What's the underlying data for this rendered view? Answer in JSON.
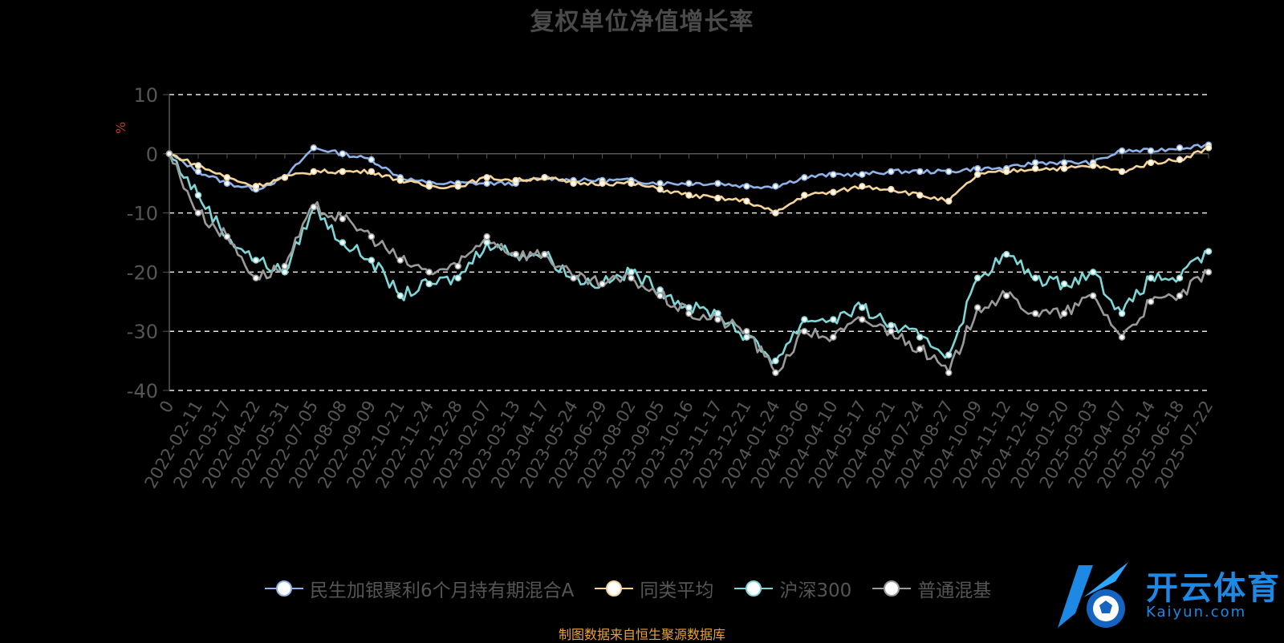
{
  "chart_data": {
    "type": "line",
    "title": "复权单位净值增长率",
    "ylabel": "%",
    "ylim": [
      -40,
      10
    ],
    "yticks": [
      10,
      0,
      -10,
      -20,
      -30,
      -40
    ],
    "grid": true,
    "legend_position": "bottom",
    "categories": [
      "0",
      "2022-02-11",
      "2022-03-17",
      "2022-04-22",
      "2022-05-31",
      "2022-07-05",
      "2022-08-08",
      "2022-09-09",
      "2022-10-21",
      "2022-11-24",
      "2022-12-28",
      "2023-02-07",
      "2023-03-13",
      "2023-04-17",
      "2023-05-24",
      "2023-06-29",
      "2023-08-02",
      "2023-09-05",
      "2023-10-16",
      "2023-11-17",
      "2023-12-21",
      "2024-01-24",
      "2024-03-06",
      "2024-04-10",
      "2024-05-17",
      "2024-06-21",
      "2024-07-24",
      "2024-08-27",
      "2024-10-09",
      "2024-11-12",
      "2024-12-16",
      "2025-01-20",
      "2025-03-03",
      "2025-04-07",
      "2025-05-14",
      "2025-06-18",
      "2025-07-22"
    ],
    "series": [
      {
        "name": "民生加银聚利6个月持有期混合A",
        "color": "#8fb3e8",
        "values": [
          0,
          -3,
          -5,
          -6,
          -4,
          1,
          0,
          -1,
          -4,
          -5,
          -5,
          -5,
          -5,
          -4,
          -4.5,
          -4.5,
          -4.5,
          -5,
          -5,
          -5,
          -5.5,
          -5.5,
          -4,
          -3.5,
          -3.5,
          -3,
          -3,
          -3,
          -2.5,
          -2.5,
          -1.5,
          -1.5,
          -1.5,
          0.5,
          0.5,
          1,
          1.5
        ]
      },
      {
        "name": "同类平均",
        "color": "#f5d49a",
        "values": [
          0,
          -2,
          -4,
          -5.5,
          -4,
          -3,
          -3,
          -3,
          -4.5,
          -5.5,
          -5.5,
          -4,
          -4.5,
          -4,
          -5,
          -5,
          -5,
          -6,
          -7,
          -7.5,
          -8,
          -10,
          -7,
          -6.5,
          -5.5,
          -6,
          -7,
          -8,
          -3.5,
          -3,
          -2.5,
          -2.5,
          -2,
          -3,
          -1.5,
          -1,
          1
        ]
      },
      {
        "name": "沪深300",
        "color": "#7fd6d6",
        "values": [
          0,
          -7,
          -14,
          -18,
          -20,
          -9,
          -15,
          -18,
          -24,
          -22,
          -21,
          -15,
          -17,
          -17,
          -21,
          -22,
          -20,
          -23,
          -26,
          -27,
          -31,
          -35,
          -28,
          -28,
          -26,
          -29,
          -31,
          -34,
          -21,
          -17,
          -21,
          -22,
          -20,
          -27,
          -21,
          -21,
          -16.5
        ]
      },
      {
        "name": "普通混基",
        "color": "#9a9a9a",
        "values": [
          0,
          -10,
          -14,
          -21,
          -19,
          -9,
          -11,
          -14,
          -18,
          -20,
          -19,
          -14,
          -17,
          -17,
          -21,
          -22,
          -21,
          -24,
          -27,
          -28,
          -30,
          -37,
          -30,
          -31,
          -28,
          -30,
          -33,
          -37,
          -26,
          -24,
          -27,
          -27,
          -24,
          -31,
          -25,
          -24,
          -20
        ]
      }
    ]
  },
  "footer": {
    "source": "制图数据来自恒生聚源数据库"
  },
  "logo": {
    "name": "开云体育",
    "domain": "Kaiyun.com"
  }
}
